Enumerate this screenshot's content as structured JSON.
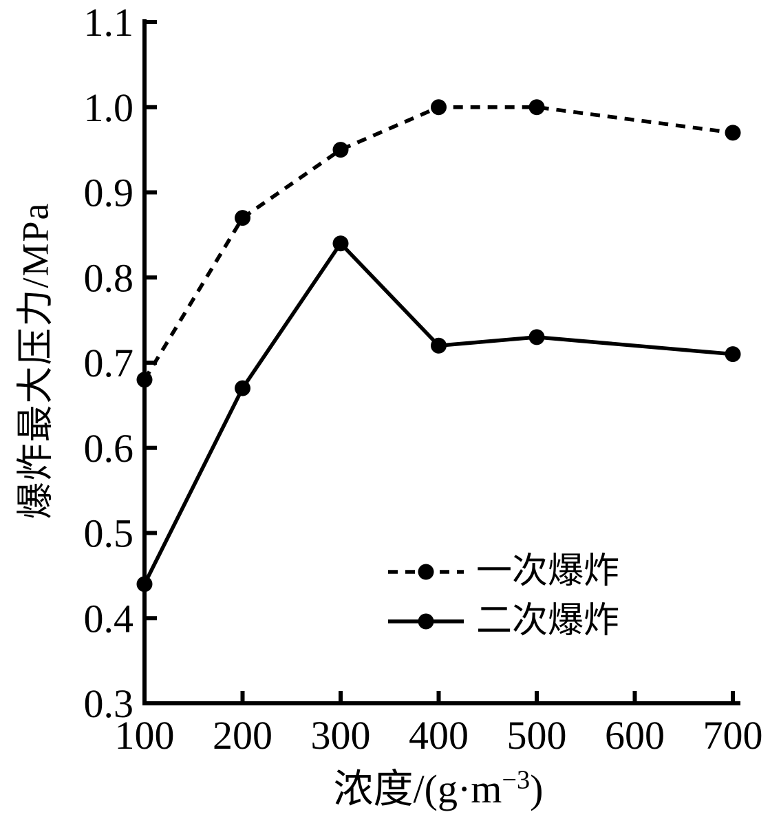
{
  "chart_data": {
    "type": "line",
    "title": "",
    "xlabel": "浓度/(g·m−3)",
    "xlabel_parts": {
      "prefix": "浓度/(g·m",
      "sup": "−3",
      "suffix": ")"
    },
    "ylabel": "爆炸最大压力/MPa",
    "x": [
      100,
      200,
      300,
      400,
      500,
      700
    ],
    "series": [
      {
        "name": "一次爆炸",
        "line_style": "dashed",
        "marker": "circle",
        "color": "#000000",
        "values": [
          0.68,
          0.87,
          0.95,
          1.0,
          1.0,
          0.97
        ]
      },
      {
        "name": "二次爆炸",
        "line_style": "solid",
        "marker": "circle",
        "color": "#000000",
        "values": [
          0.44,
          0.67,
          0.84,
          0.72,
          0.73,
          0.71
        ]
      }
    ],
    "x_ticks": {
      "values": [
        100,
        200,
        300,
        400,
        500,
        600,
        700
      ],
      "labels": [
        "100",
        "200",
        "300",
        "400",
        "500",
        "600",
        "700"
      ]
    },
    "y_ticks": {
      "values": [
        0.3,
        0.4,
        0.5,
        0.6,
        0.7,
        0.8,
        0.9,
        1.0,
        1.1
      ],
      "labels": [
        "0.3",
        "0.4",
        "0.5",
        "0.6",
        "0.7",
        "0.8",
        "0.9",
        "1.0",
        "1.1"
      ]
    },
    "xlim": [
      100,
      700
    ],
    "ylim": [
      0.3,
      1.1
    ],
    "grid": false,
    "legend_position": "inside-lower-right",
    "colors": {
      "foreground": "#000000",
      "background": "#ffffff"
    }
  }
}
